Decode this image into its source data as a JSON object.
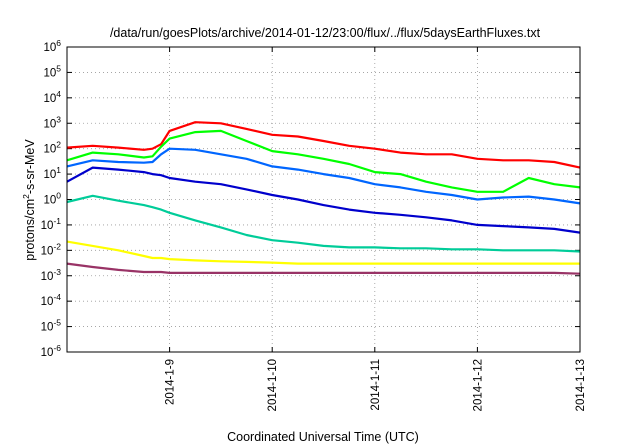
{
  "chart_data": {
    "type": "line",
    "title": "/data/run/goesPlots/archive/2014-01-12/23:00/flux/../flux/5daysEarthFluxes.txt",
    "xlabel": "Coordinated Universal Time (UTC)",
    "ylabel": {
      "base": "protons/cm",
      "sup": "2",
      "rest": "-s-sr-MeV"
    },
    "yscale": "log",
    "ylim": [
      1e-06,
      1000000.0
    ],
    "xlim": [
      "2014-01-08T00:00",
      "2014-01-13T00:00"
    ],
    "x_ticks": [
      "2014-1-9",
      "2014-1-10",
      "2014-1-11",
      "2014-1-12",
      "2014-1-13"
    ],
    "y_ticks": [
      {
        "base": "10",
        "exp": "-6"
      },
      {
        "base": "10",
        "exp": "-5"
      },
      {
        "base": "10",
        "exp": "-4"
      },
      {
        "base": "10",
        "exp": "-3"
      },
      {
        "base": "10",
        "exp": "-2"
      },
      {
        "base": "10",
        "exp": "-1"
      },
      {
        "base": "10",
        "exp": "0"
      },
      {
        "base": "10",
        "exp": "1"
      },
      {
        "base": "10",
        "exp": "2"
      },
      {
        "base": "10",
        "exp": "3"
      },
      {
        "base": "10",
        "exp": "4"
      },
      {
        "base": "10",
        "exp": "5"
      },
      {
        "base": "10",
        "exp": "6"
      }
    ],
    "grid": true,
    "x": [
      "2014-01-08T00:00",
      "2014-01-08T06:00",
      "2014-01-08T12:00",
      "2014-01-08T18:00",
      "2014-01-08T20:00",
      "2014-01-08T22:00",
      "2014-01-09T00:00",
      "2014-01-09T06:00",
      "2014-01-09T12:00",
      "2014-01-09T18:00",
      "2014-01-10T00:00",
      "2014-01-10T06:00",
      "2014-01-10T12:00",
      "2014-01-10T18:00",
      "2014-01-11T00:00",
      "2014-01-11T06:00",
      "2014-01-11T12:00",
      "2014-01-11T18:00",
      "2014-01-12T00:00",
      "2014-01-12T06:00",
      "2014-01-12T12:00",
      "2014-01-12T18:00",
      "2014-01-13T00:00"
    ],
    "series": [
      {
        "color": "#ff0000",
        "values": [
          110,
          130,
          110,
          90,
          100,
          150,
          500,
          1100,
          1000,
          600,
          350,
          300,
          200,
          130,
          100,
          70,
          60,
          60,
          40,
          35,
          35,
          30,
          18
        ]
      },
      {
        "color": "#00ff00",
        "values": [
          35,
          70,
          60,
          45,
          50,
          120,
          250,
          450,
          500,
          200,
          80,
          60,
          40,
          25,
          12,
          10,
          5,
          3,
          2,
          2,
          7,
          4,
          3
        ]
      },
      {
        "color": "#0066ff",
        "values": [
          20,
          35,
          30,
          28,
          30,
          60,
          100,
          90,
          60,
          40,
          20,
          15,
          10,
          7,
          4,
          3,
          2,
          1.5,
          1,
          1.2,
          1.3,
          1,
          0.7
        ]
      },
      {
        "color": "#0000cc",
        "values": [
          5,
          18,
          15,
          12,
          10,
          9,
          7,
          5,
          4,
          2.5,
          1.5,
          1,
          0.6,
          0.4,
          0.3,
          0.25,
          0.2,
          0.15,
          0.1,
          0.09,
          0.08,
          0.07,
          0.05
        ]
      },
      {
        "color": "#00cc99",
        "values": [
          0.8,
          1.4,
          0.9,
          0.6,
          0.5,
          0.4,
          0.3,
          0.15,
          0.08,
          0.04,
          0.025,
          0.02,
          0.015,
          0.013,
          0.013,
          0.012,
          0.012,
          0.011,
          0.011,
          0.01,
          0.01,
          0.01,
          0.009
        ]
      },
      {
        "color": "#ffff00",
        "values": [
          0.022,
          0.015,
          0.01,
          0.006,
          0.005,
          0.005,
          0.0045,
          0.004,
          0.0037,
          0.0035,
          0.0033,
          0.003,
          0.003,
          0.003,
          0.003,
          0.003,
          0.003,
          0.003,
          0.003,
          0.003,
          0.003,
          0.003,
          0.003
        ]
      },
      {
        "color": "#993366",
        "values": [
          0.003,
          0.0022,
          0.0017,
          0.0014,
          0.0014,
          0.0014,
          0.0013,
          0.0013,
          0.0013,
          0.0013,
          0.0013,
          0.0013,
          0.0013,
          0.0013,
          0.0013,
          0.0013,
          0.0013,
          0.0013,
          0.0013,
          0.0013,
          0.0013,
          0.0013,
          0.0012
        ]
      }
    ]
  }
}
